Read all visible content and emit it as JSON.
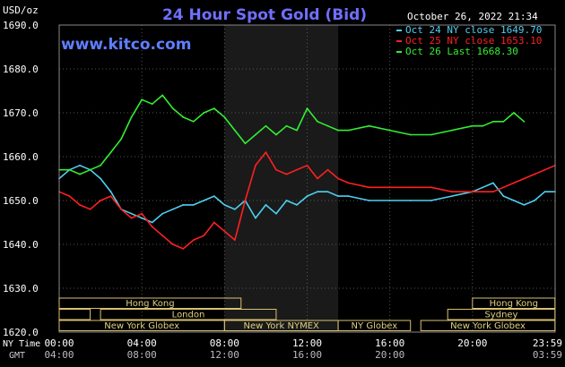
{
  "header": {
    "units": "USD/oz",
    "title": "24 Hour Spot Gold (Bid)",
    "timestamp": "October 26, 2022 21:34",
    "watermark": "www.kitco.com"
  },
  "legend": [
    {
      "label": "Oct 24 NY close 1649.70",
      "color": "#4fd0f0"
    },
    {
      "label": "Oct 25 NY close 1653.10",
      "color": "#ff2020"
    },
    {
      "label": "Oct 26 Last 1668.30",
      "color": "#33ee33"
    }
  ],
  "axis": {
    "y_ticks": [
      "1690.0",
      "1680.0",
      "1670.0",
      "1660.0",
      "1650.0",
      "1640.0",
      "1630.0",
      "1620.0"
    ],
    "x_ticks_ny": [
      "00:00",
      "04:00",
      "08:00",
      "12:00",
      "16:00",
      "20:00",
      "23:59"
    ],
    "x_ticks_gmt": [
      "04:00",
      "08:00",
      "12:00",
      "16:00",
      "20:00",
      "03:59"
    ],
    "ny_label": "NY Time",
    "gmt_label": "GMT"
  },
  "sessions": {
    "row1": [
      "Hong Kong",
      "Hong Kong"
    ],
    "row2": [
      "London",
      "Sydney"
    ],
    "row3": [
      "New York Globex",
      "New York NYMEX",
      "NY Globex",
      "New York Globex"
    ]
  },
  "chart_data": {
    "type": "line",
    "ylim": [
      1620,
      1690
    ],
    "xlim": [
      0,
      24
    ],
    "x_unit": "hours (NY time)",
    "grid": true,
    "shaded_region": [
      8.0,
      13.5
    ],
    "series": [
      {
        "name": "Oct 24 NY close 1649.70",
        "color": "#4fd0f0",
        "x": [
          0,
          0.5,
          1,
          1.5,
          2,
          2.5,
          3,
          3.5,
          4,
          4.5,
          5,
          5.5,
          6,
          6.5,
          7,
          7.5,
          8,
          8.5,
          9,
          9.5,
          10,
          10.5,
          11,
          11.5,
          12,
          12.5,
          13,
          13.5,
          14,
          15,
          16,
          17,
          18,
          19,
          20,
          20.5,
          21,
          21.5,
          22,
          22.5,
          23,
          23.5,
          24
        ],
        "values": [
          1655,
          1657,
          1658,
          1657,
          1655,
          1652,
          1648,
          1647,
          1646,
          1645,
          1647,
          1648,
          1649,
          1649,
          1650,
          1651,
          1649,
          1648,
          1650,
          1646,
          1649,
          1647,
          1650,
          1649,
          1651,
          1652,
          1652,
          1651,
          1651,
          1650,
          1650,
          1650,
          1650,
          1651,
          1652,
          1653,
          1654,
          1651,
          1650,
          1649,
          1650,
          1652,
          1652
        ]
      },
      {
        "name": "Oct 25 NY close 1653.10",
        "color": "#ff2020",
        "x": [
          0,
          0.5,
          1,
          1.5,
          2,
          2.5,
          3,
          3.5,
          4,
          4.5,
          5,
          5.5,
          6,
          6.5,
          7,
          7.5,
          8,
          8.5,
          9,
          9.5,
          10,
          10.5,
          11,
          11.5,
          12,
          12.5,
          13,
          13.5,
          14,
          15,
          16,
          17,
          18,
          19,
          20,
          20.5,
          21,
          21.5,
          22,
          22.5,
          23,
          23.5,
          24
        ],
        "values": [
          1652,
          1651,
          1649,
          1648,
          1650,
          1651,
          1648,
          1646,
          1647,
          1644,
          1642,
          1640,
          1639,
          1641,
          1642,
          1645,
          1643,
          1641,
          1650,
          1658,
          1661,
          1657,
          1656,
          1657,
          1658,
          1655,
          1657,
          1655,
          1654,
          1653,
          1653,
          1653,
          1653,
          1652,
          1652,
          1652,
          1652,
          1653,
          1654,
          1655,
          1656,
          1657,
          1658
        ]
      },
      {
        "name": "Oct 26 Last 1668.30",
        "color": "#33ee33",
        "x": [
          0,
          0.5,
          1,
          1.5,
          2,
          2.5,
          3,
          3.5,
          4,
          4.5,
          5,
          5.5,
          6,
          6.5,
          7,
          7.5,
          8,
          8.5,
          9,
          9.5,
          10,
          10.5,
          11,
          11.5,
          12,
          12.5,
          13,
          13.5,
          14,
          15,
          16,
          17,
          18,
          19,
          20,
          20.5,
          21,
          21.5,
          22,
          22.5
        ],
        "values": [
          1657,
          1657,
          1656,
          1657,
          1658,
          1661,
          1664,
          1669,
          1673,
          1672,
          1674,
          1671,
          1669,
          1668,
          1670,
          1671,
          1669,
          1666,
          1663,
          1665,
          1667,
          1665,
          1667,
          1666,
          1671,
          1668,
          1667,
          1666,
          1666,
          1667,
          1666,
          1665,
          1665,
          1666,
          1667,
          1667,
          1668,
          1668,
          1670,
          1668
        ]
      }
    ]
  }
}
